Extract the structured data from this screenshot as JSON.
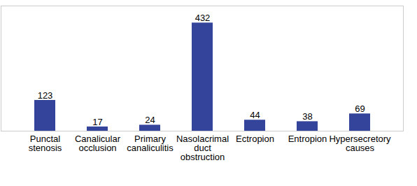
{
  "chart_data": {
    "type": "bar",
    "categories": [
      "Punctal stenosis",
      "Canalicular occlusion",
      "Primary canaliculitis",
      "Nasolacrimal duct obstruction",
      "Ectropion",
      "Entropion",
      "Hypersecretory causes"
    ],
    "values": [
      123,
      17,
      24,
      432,
      44,
      38,
      69
    ],
    "color": "#33449a",
    "ylim": [
      0,
      500
    ],
    "yticks": [],
    "grid": false,
    "data_labels": true,
    "tick_labels": "x"
  }
}
